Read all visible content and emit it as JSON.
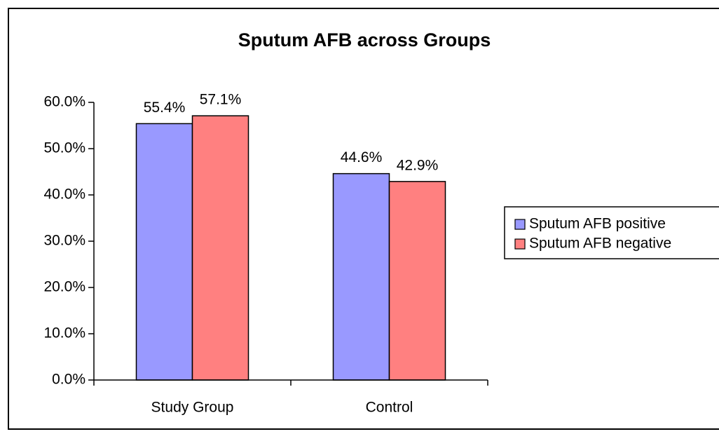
{
  "chart_data": {
    "type": "bar",
    "title": "Sputum AFB across Groups",
    "categories": [
      "Study Group",
      "Control"
    ],
    "series": [
      {
        "name": "Sputum AFB positive",
        "color": "#9999ff",
        "values": [
          55.4,
          44.6
        ],
        "value_labels": [
          "55.4%",
          "44.6%"
        ]
      },
      {
        "name": "Sputum AFB negative",
        "color": "#ff8080",
        "values": [
          57.1,
          42.9
        ],
        "value_labels": [
          "57.1%",
          "42.9%"
        ]
      }
    ],
    "ylim": [
      0,
      60
    ],
    "yticks": [
      {
        "value": 0,
        "label": "0.0%"
      },
      {
        "value": 10,
        "label": "10.0%"
      },
      {
        "value": 20,
        "label": "20.0%"
      },
      {
        "value": 30,
        "label": "30.0%"
      },
      {
        "value": 40,
        "label": "40.0%"
      },
      {
        "value": 50,
        "label": "50.0%"
      },
      {
        "value": 60,
        "label": "60.0%"
      }
    ],
    "grid": false,
    "legend": "right"
  }
}
